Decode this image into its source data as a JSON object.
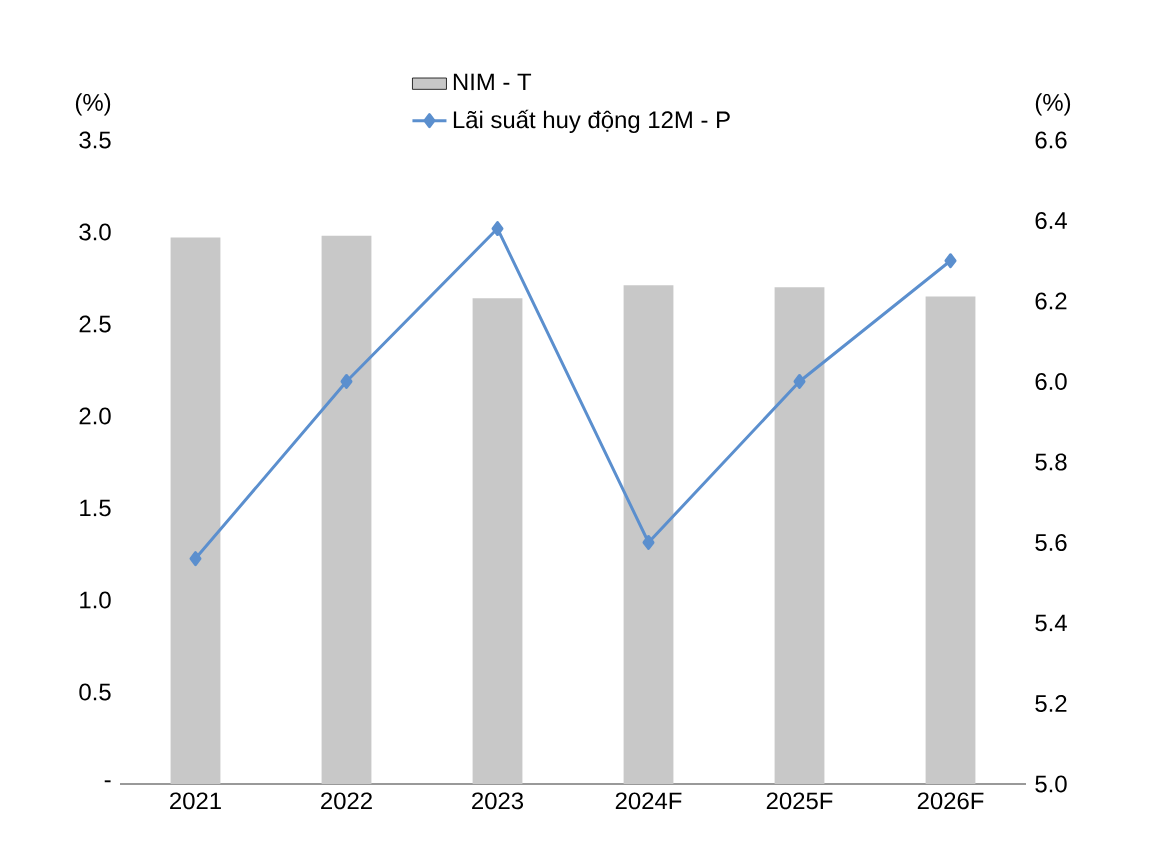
{
  "chart_data": {
    "type": "bar",
    "ylabel": "(%)",
    "y2label": "(%)",
    "categories": [
      "2021",
      "2022",
      "2023",
      "2024F",
      "2025F",
      "2026F"
    ],
    "series": [
      {
        "name": "NIM  - T",
        "color": "#c8c8c8",
        "values": [
          2.97,
          2.98,
          2.64,
          2.71,
          2.7,
          2.65
        ]
      },
      {
        "name": "Lãi suất huy động 12M - P",
        "type": "line",
        "axis": "y2",
        "color": "#5b8fce",
        "marker": "diamond",
        "values": [
          5.56,
          6.0,
          6.38,
          5.6,
          6.0,
          6.3
        ]
      }
    ],
    "ylim": [
      0,
      3.5
    ],
    "yticks": [
      {
        "value": 0,
        "label": "-"
      },
      {
        "value": 0.5,
        "label": "0.5"
      },
      {
        "value": 1,
        "label": "1.0"
      },
      {
        "value": 1.5,
        "label": "1.5"
      },
      {
        "value": 2,
        "label": "2.0"
      },
      {
        "value": 2.5,
        "label": "2.5"
      },
      {
        "value": 3,
        "label": "3.0"
      },
      {
        "value": 3.5,
        "label": "3.5"
      }
    ],
    "y2lim": [
      5.0,
      6.6
    ],
    "y2ticks": [
      {
        "value": 5.0,
        "label": "5.0"
      },
      {
        "value": 5.2,
        "label": "5.2"
      },
      {
        "value": 5.4,
        "label": "5.4"
      },
      {
        "value": 5.6,
        "label": "5.6"
      },
      {
        "value": 5.8,
        "label": "5.8"
      },
      {
        "value": 6.0,
        "label": "6.0"
      },
      {
        "value": 6.2,
        "label": "6.2"
      },
      {
        "value": 6.4,
        "label": "6.4"
      },
      {
        "value": 6.6,
        "label": "6.6"
      }
    ],
    "grid": false,
    "legend": "top"
  }
}
